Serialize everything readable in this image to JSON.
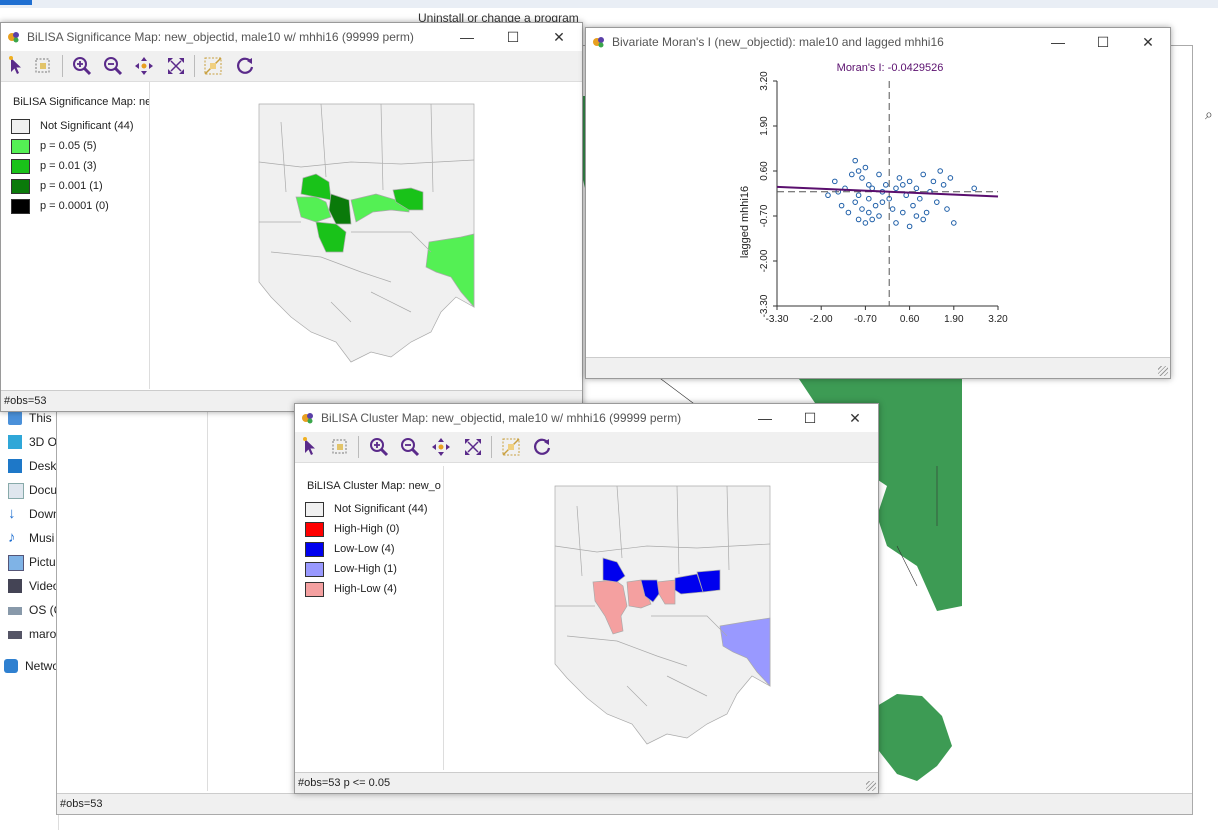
{
  "background": {
    "bg_window_title": "Uninstall or change a program",
    "bg_status": "#obs=53",
    "explorer_items": [
      {
        "label": "This PC",
        "icon": "computer-icon"
      },
      {
        "label": "3D O",
        "icon": "cube-icon"
      },
      {
        "label": "Deskt",
        "icon": "desktop-icon"
      },
      {
        "label": "Docu",
        "icon": "document-icon"
      },
      {
        "label": "Down",
        "icon": "download-icon"
      },
      {
        "label": "Musi",
        "icon": "music-icon"
      },
      {
        "label": "Pictu",
        "icon": "pictures-icon"
      },
      {
        "label": "Video",
        "icon": "video-icon"
      },
      {
        "label": "OS (C",
        "icon": "drive-icon"
      },
      {
        "label": "maro",
        "icon": "network-drive-icon"
      },
      {
        "label": "Netwo",
        "icon": "network-icon"
      }
    ],
    "green_map_color": "#3d9b54"
  },
  "sig_window": {
    "title": "BiLISA Significance Map: new_objectid, male10 w/ mhhi16 (99999 perm)",
    "legend_title": "BiLISA Significance Map: ne",
    "legend": [
      {
        "label": "Not Significant (44)",
        "color": "#f0f0f0"
      },
      {
        "label": "p = 0.05 (5)",
        "color": "#54f054"
      },
      {
        "label": "p = 0.01 (3)",
        "color": "#19c219"
      },
      {
        "label": "p = 0.001 (1)",
        "color": "#0a7a0a"
      },
      {
        "label": "p = 0.0001 (0)",
        "color": "#000000"
      }
    ],
    "status": "#obs=53"
  },
  "moran_window": {
    "title": "Bivariate Moran's I (new_objectid): male10 and lagged mhhi16",
    "chart_data": {
      "type": "scatter",
      "title": "Moran's I: -0.0429526",
      "xlabel": "male10",
      "ylabel": "lagged mhhi16",
      "xlim": [
        -3.3,
        3.2
      ],
      "ylim": [
        -3.3,
        3.2
      ],
      "xticks": [
        "-3.30",
        "-2.00",
        "-0.70",
        "0.60",
        "1.90",
        "3.20"
      ],
      "yticks": [
        "-3.30",
        "-2.00",
        "-0.70",
        "0.60",
        "1.90",
        "3.20"
      ],
      "regression": {
        "slope": -0.0429526,
        "intercept": 0.0
      },
      "points": [
        [
          -1.6,
          0.3
        ],
        [
          -1.3,
          0.1
        ],
        [
          -1.1,
          0.5
        ],
        [
          -1.0,
          0.9
        ],
        [
          -0.9,
          0.6
        ],
        [
          -0.8,
          0.4
        ],
        [
          -0.7,
          0.7
        ],
        [
          -0.6,
          0.2
        ],
        [
          -1.4,
          -0.4
        ],
        [
          -1.2,
          -0.6
        ],
        [
          -1.0,
          -0.3
        ],
        [
          -0.9,
          -0.8
        ],
        [
          -0.8,
          -0.5
        ],
        [
          -0.7,
          -0.9
        ],
        [
          -0.6,
          -0.6
        ],
        [
          -0.5,
          -0.8
        ],
        [
          -0.4,
          -0.4
        ],
        [
          -0.3,
          -0.7
        ],
        [
          -0.2,
          -0.3
        ],
        [
          -0.5,
          0.1
        ],
        [
          -0.3,
          0.5
        ],
        [
          -0.2,
          0.0
        ],
        [
          0.0,
          -0.2
        ],
        [
          0.1,
          -0.5
        ],
        [
          0.2,
          0.1
        ],
        [
          0.3,
          0.4
        ],
        [
          0.4,
          0.2
        ],
        [
          0.5,
          -0.1
        ],
        [
          0.6,
          0.3
        ],
        [
          0.7,
          -0.4
        ],
        [
          0.8,
          0.1
        ],
        [
          0.9,
          -0.2
        ],
        [
          1.0,
          0.5
        ],
        [
          1.1,
          -0.6
        ],
        [
          1.2,
          0.0
        ],
        [
          1.3,
          0.3
        ],
        [
          1.4,
          -0.3
        ],
        [
          1.5,
          0.6
        ],
        [
          1.6,
          0.2
        ],
        [
          1.7,
          -0.5
        ],
        [
          1.8,
          0.4
        ],
        [
          -1.8,
          -0.1
        ],
        [
          -1.5,
          0.0
        ],
        [
          0.2,
          -0.9
        ],
        [
          0.6,
          -1.0
        ],
        [
          1.0,
          -0.8
        ],
        [
          -0.1,
          0.2
        ],
        [
          0.4,
          -0.6
        ],
        [
          2.5,
          0.1
        ],
        [
          1.9,
          -0.9
        ],
        [
          -0.9,
          -0.1
        ],
        [
          0.8,
          -0.7
        ],
        [
          -0.6,
          -0.2
        ]
      ],
      "point_color": "#1f5fa8",
      "line_color": "#5a0f6e"
    }
  },
  "cluster_window": {
    "title": "BiLISA Cluster Map: new_objectid, male10 w/ mhhi16 (99999 perm)",
    "legend_title": "BiLISA Cluster Map: new_o",
    "legend": [
      {
        "label": "Not Significant (44)",
        "color": "#f0f0f0"
      },
      {
        "label": "High-High (0)",
        "color": "#ff0000"
      },
      {
        "label": "Low-Low (4)",
        "color": "#0000ee"
      },
      {
        "label": "Low-High (1)",
        "color": "#9999ff"
      },
      {
        "label": "High-Low (4)",
        "color": "#f4a0a0"
      }
    ],
    "status": "#obs=53  p <= 0.05"
  },
  "window_buttons": {
    "minimize": "—",
    "maximize": "☐",
    "close": "✕"
  },
  "toolbar_icons": [
    "select-icon",
    "select-by-shape-icon",
    "zoom-in-icon",
    "zoom-out-icon",
    "pan-icon",
    "full-extent-icon",
    "map-options-icon",
    "refresh-icon"
  ]
}
